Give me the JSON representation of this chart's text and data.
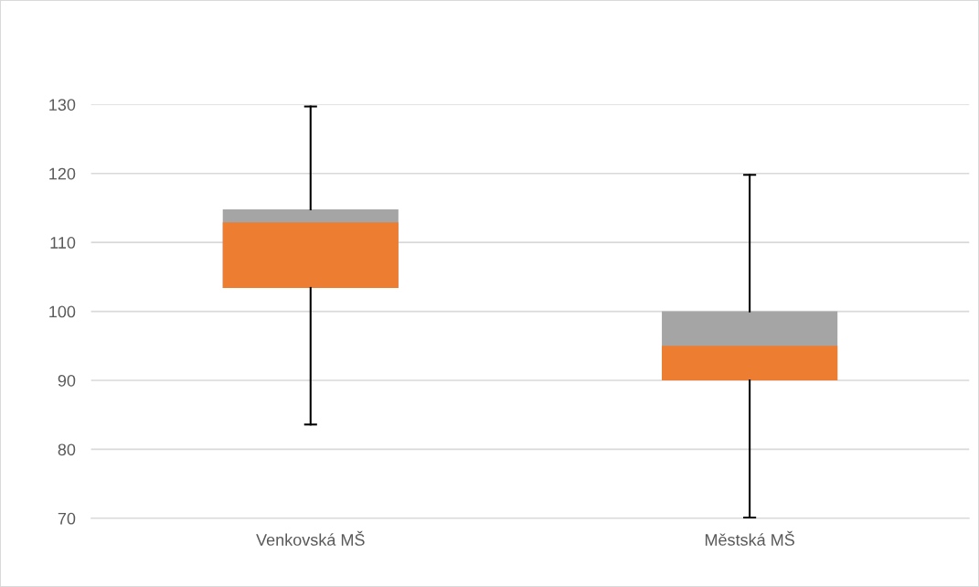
{
  "chart_data": {
    "type": "box",
    "categories": [
      "Venkovská MŠ",
      "Městská MŠ"
    ],
    "boxes": [
      {
        "low": 83.6,
        "q1": 103.4,
        "median": 112.9,
        "q3": 114.8,
        "high": 129.7
      },
      {
        "low": 70.1,
        "q1": 90,
        "median": 95,
        "q3": 100,
        "high": 119.8
      }
    ],
    "colors": [
      "#ed7d31",
      "#a5a5a5"
    ],
    "ylim": [
      70,
      130
    ],
    "yticks": [
      70,
      80,
      90,
      100,
      110,
      120,
      130
    ],
    "grid": "y"
  }
}
